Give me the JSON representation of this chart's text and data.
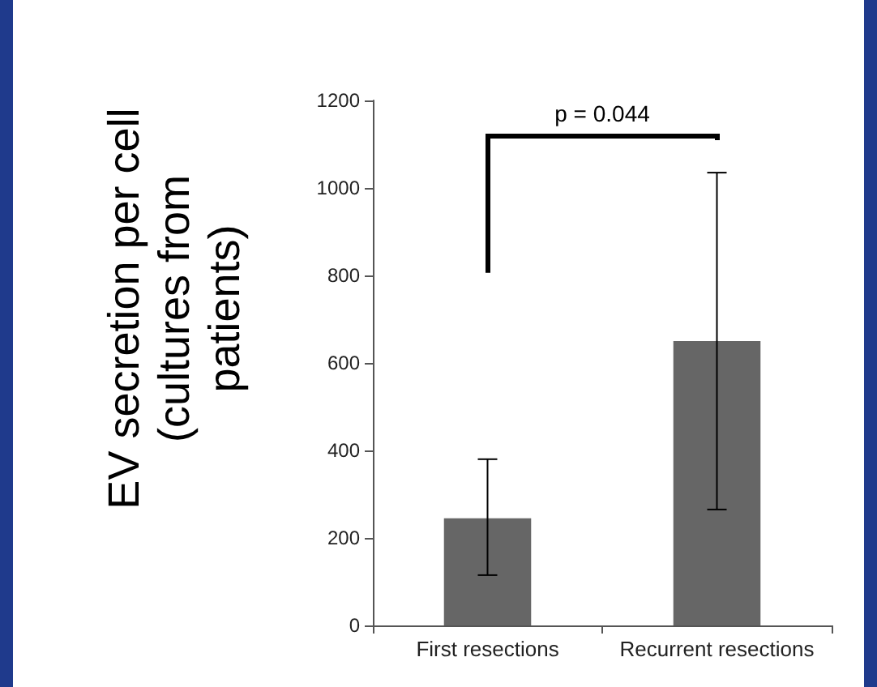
{
  "chart_data": {
    "type": "bar",
    "ylabel": "EV secretion per cell\n(cultures from\npatients)",
    "categories": [
      "First resections",
      "Recurrent resections"
    ],
    "values": [
      245,
      650
    ],
    "color": "#666666",
    "errors": [
      [
        115,
        380
      ],
      [
        265,
        1035
      ]
    ],
    "ylim": [
      0,
      1200
    ],
    "yticks": [
      0,
      200,
      400,
      600,
      800,
      1000,
      1200
    ],
    "grid": false,
    "annotations": [
      "p = 0.044"
    ]
  }
}
